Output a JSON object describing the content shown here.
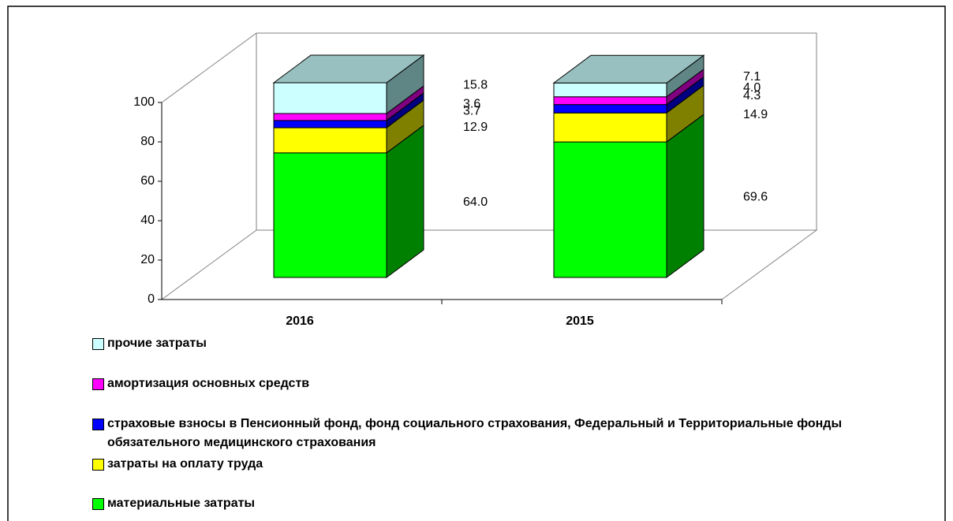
{
  "chart_data": {
    "type": "bar3d_stacked",
    "categories": [
      "2016",
      "2015"
    ],
    "series": [
      {
        "name": "материальные затраты",
        "color": "#00ff00",
        "side": "#008000",
        "values": [
          64.0,
          69.6
        ],
        "value_labels": [
          "64.0",
          "69.6"
        ]
      },
      {
        "name": "затраты на оплату труда",
        "color": "#ffff00",
        "side": "#808000",
        "values": [
          12.9,
          14.9
        ],
        "value_labels": [
          "12.9",
          "14.9"
        ]
      },
      {
        "name": "страховые взносы в Пенсионный фонд, фонд социального страхования, Федеральный и Территориальные фонды обязательного медицинского страхования",
        "color": "#0000ff",
        "side": "#000080",
        "values": [
          3.7,
          4.3
        ],
        "value_labels": [
          "3.7",
          "4.3"
        ]
      },
      {
        "name": "амортизация основных средств",
        "color": "#ff00ff",
        "side": "#800080",
        "values": [
          3.6,
          4.0
        ],
        "value_labels": [
          "3.6",
          "4.0"
        ]
      },
      {
        "name": "прочие затраты",
        "color": "#ccffff",
        "side": "#5f8585",
        "top": "#99c0c0",
        "values": [
          15.8,
          7.1
        ],
        "value_labels": [
          "15.8",
          "7.1"
        ]
      }
    ],
    "ylim": [
      0,
      100
    ],
    "yticks": [
      0,
      20,
      40,
      60,
      80,
      100
    ],
    "legend": "bottom"
  }
}
